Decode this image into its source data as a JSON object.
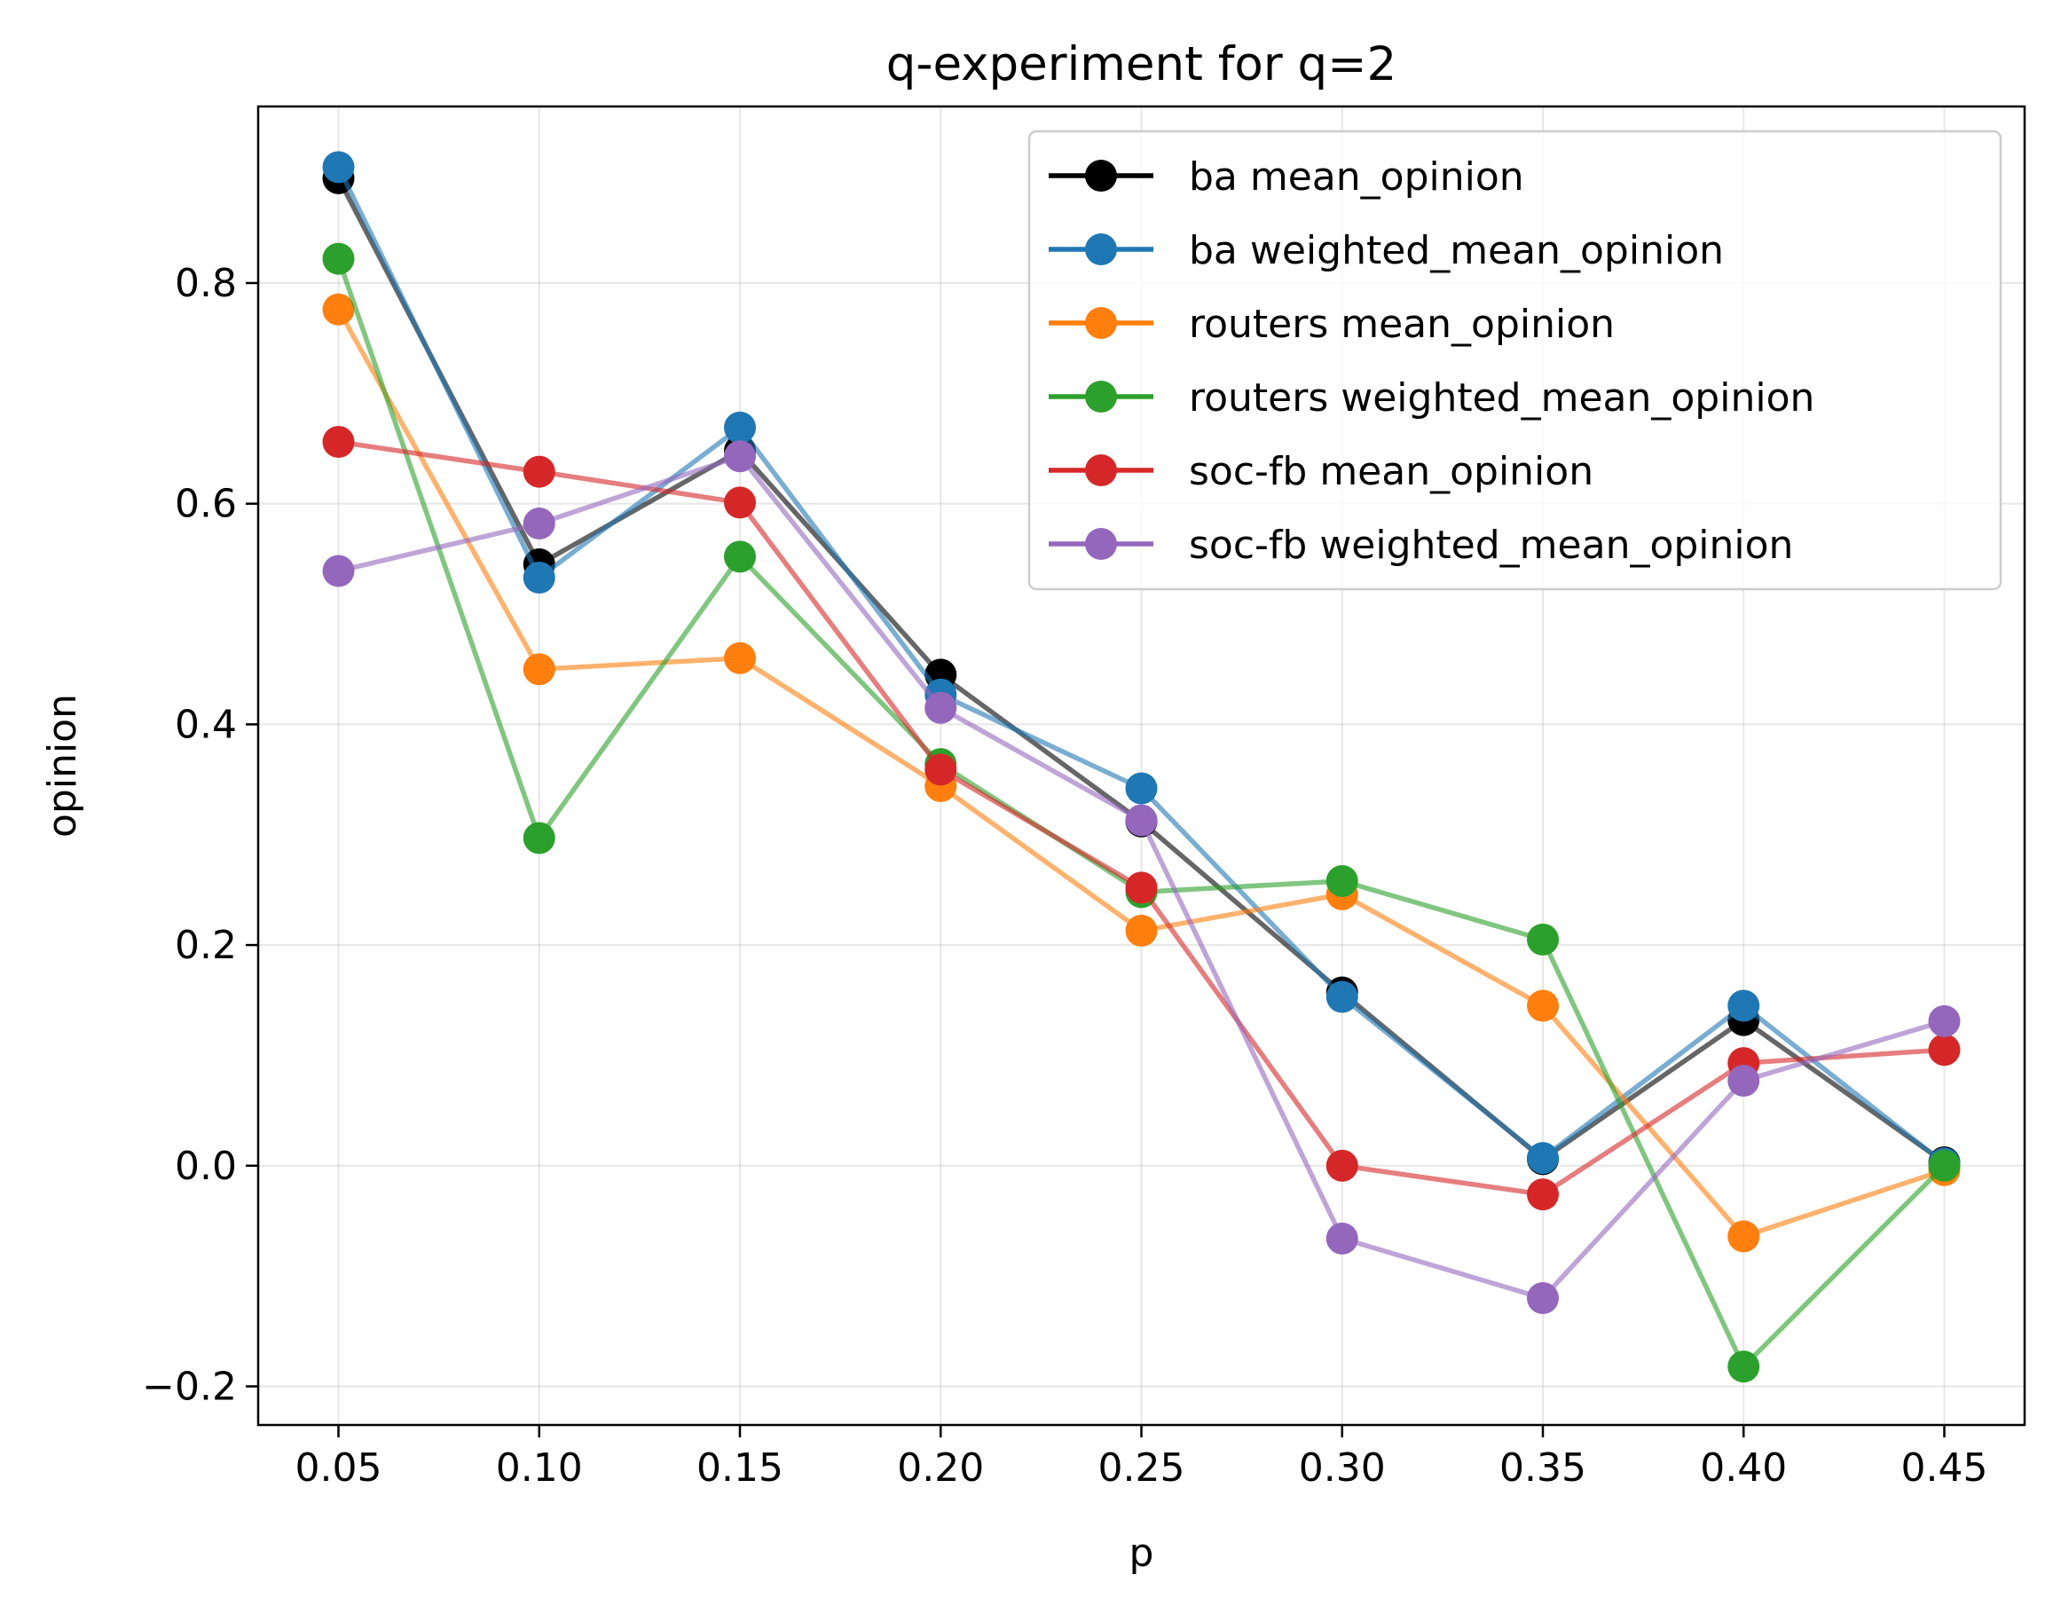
{
  "chart_data": {
    "type": "line",
    "title": "q-experiment for q=2",
    "xlabel": "p",
    "ylabel": "opinion",
    "x": [
      0.05,
      0.1,
      0.15,
      0.2,
      0.25,
      0.3,
      0.35,
      0.4,
      0.45
    ],
    "x_tick_labels": [
      "0.05",
      "0.10",
      "0.15",
      "0.20",
      "0.25",
      "0.30",
      "0.35",
      "0.40",
      "0.45"
    ],
    "y_ticks": [
      -0.2,
      0.0,
      0.2,
      0.4,
      0.6,
      0.8
    ],
    "y_tick_labels": [
      "−0.2",
      "0.0",
      "0.2",
      "0.4",
      "0.6",
      "0.8"
    ],
    "xlim": [
      0.03,
      0.47
    ],
    "ylim": [
      -0.235,
      0.96
    ],
    "grid": true,
    "legend_position": "top-right",
    "series": [
      {
        "name": "ba mean_opinion",
        "color": "#000000",
        "values": [
          0.895,
          0.545,
          0.648,
          0.445,
          0.312,
          0.157,
          0.006,
          0.132,
          0.003
        ]
      },
      {
        "name": "ba weighted_mean_opinion",
        "color": "#1f77b4",
        "values": [
          0.905,
          0.533,
          0.669,
          0.427,
          0.342,
          0.153,
          0.007,
          0.145,
          0.002
        ]
      },
      {
        "name": "routers mean_opinion",
        "color": "#ff7f0e",
        "values": [
          0.776,
          0.45,
          0.46,
          0.344,
          0.213,
          0.246,
          0.145,
          -0.064,
          -0.004
        ]
      },
      {
        "name": "routers weighted_mean_opinion",
        "color": "#2ca02c",
        "values": [
          0.822,
          0.297,
          0.552,
          0.364,
          0.248,
          0.258,
          0.205,
          -0.182,
          0.0
        ]
      },
      {
        "name": "soc-fb mean_opinion",
        "color": "#d62728",
        "values": [
          0.656,
          0.629,
          0.601,
          0.359,
          0.252,
          0.0,
          -0.026,
          0.093,
          0.105
        ]
      },
      {
        "name": "soc-fb weighted_mean_opinion",
        "color": "#9467bd",
        "values": [
          0.539,
          0.582,
          0.643,
          0.415,
          0.313,
          -0.066,
          -0.12,
          0.077,
          0.131
        ]
      }
    ]
  }
}
